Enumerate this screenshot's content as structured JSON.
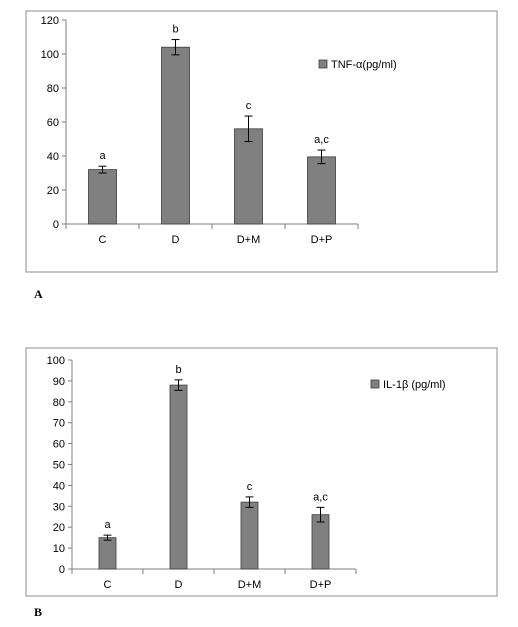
{
  "chart_data": [
    {
      "type": "bar",
      "panel_label": "A",
      "categories": [
        "C",
        "D",
        "D+M",
        "D+P"
      ],
      "series": [
        {
          "name": "TNF-α(pg/ml)",
          "values": [
            32,
            104,
            56,
            39.5
          ],
          "errors": [
            2,
            4.5,
            7.5,
            4
          ]
        }
      ],
      "significance_labels": [
        "a",
        "b",
        "c",
        "a,c"
      ],
      "ylim": [
        0,
        120
      ],
      "yticks": [
        0,
        20,
        40,
        60,
        80,
        100,
        120
      ],
      "grid": false,
      "legend_position": "right",
      "bar_color": "#808080"
    },
    {
      "type": "bar",
      "panel_label": "B",
      "categories": [
        "C",
        "D",
        "D+M",
        "D+P"
      ],
      "series": [
        {
          "name": "IL-1β (pg/ml)",
          "values": [
            15,
            88,
            32,
            26
          ],
          "errors": [
            1.2,
            2.5,
            2.5,
            3.5
          ]
        }
      ],
      "significance_labels": [
        "a",
        "b",
        "c",
        "a,c"
      ],
      "ylim": [
        0,
        100
      ],
      "yticks": [
        0,
        10,
        20,
        30,
        40,
        50,
        60,
        70,
        80,
        90,
        100
      ],
      "grid": false,
      "legend_position": "right",
      "bar_color": "#808080"
    }
  ]
}
